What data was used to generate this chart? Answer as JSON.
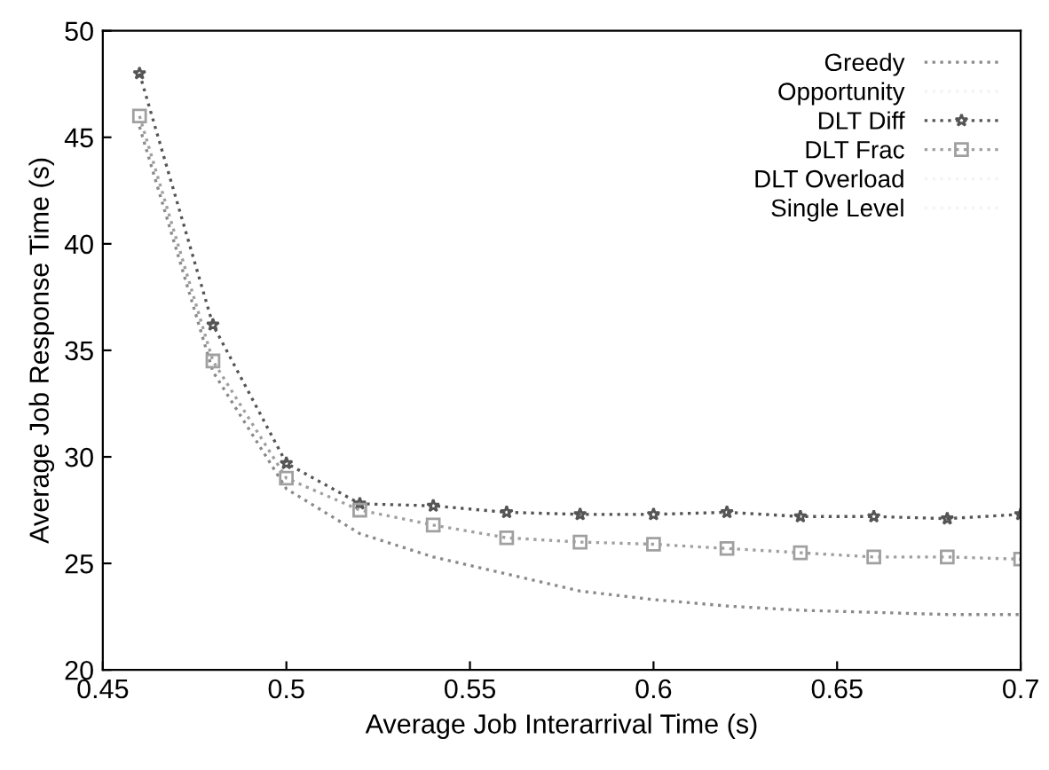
{
  "chart_data": {
    "type": "line",
    "xlabel": "Average Job Interarrival Time (s)",
    "ylabel": "Average Job Response Time (s)",
    "x": [
      0.46,
      0.48,
      0.5,
      0.52,
      0.54,
      0.56,
      0.58,
      0.6,
      0.62,
      0.64,
      0.66,
      0.68,
      0.7
    ],
    "series": [
      {
        "name": "Greedy",
        "color": "#8a8a8a",
        "marker": "none",
        "line_style": "dotted",
        "values": [
          45.5,
          34,
          28.5,
          26.4,
          25.3,
          24.5,
          23.7,
          23.3,
          23.0,
          22.8,
          22.7,
          22.6,
          22.6
        ]
      },
      {
        "name": "Opportunity",
        "color": "#f4f4f4",
        "marker": "none",
        "line_style": "dotted",
        "values": [
          null,
          null,
          null,
          null,
          null,
          null,
          null,
          null,
          null,
          null,
          null,
          null,
          null
        ]
      },
      {
        "name": "DLT Diff",
        "color": "#555555",
        "marker": "star",
        "line_style": "dotted",
        "values": [
          48,
          36.2,
          29.7,
          27.8,
          27.7,
          27.4,
          27.3,
          27.3,
          27.4,
          27.2,
          27.2,
          27.1,
          27.3
        ]
      },
      {
        "name": "DLT Frac",
        "color": "#a0a0a0",
        "marker": "square",
        "line_style": "dotted",
        "values": [
          46,
          34.5,
          29,
          27.5,
          26.8,
          26.2,
          26.0,
          25.9,
          25.7,
          25.5,
          25.3,
          25.3,
          25.2
        ]
      },
      {
        "name": "DLT Overload",
        "color": "#f4f4f4",
        "marker": "none",
        "line_style": "dotted",
        "values": [
          null,
          null,
          null,
          null,
          null,
          null,
          null,
          null,
          null,
          null,
          null,
          null,
          null
        ]
      },
      {
        "name": "Single Level",
        "color": "#f4f4f4",
        "marker": "none",
        "line_style": "dotted",
        "values": [
          null,
          null,
          null,
          null,
          null,
          null,
          null,
          null,
          null,
          null,
          null,
          null,
          null
        ]
      }
    ],
    "xlim": [
      0.45,
      0.7
    ],
    "xticks": [
      0.45,
      0.5,
      0.55,
      0.6,
      0.65,
      0.7
    ],
    "ylim": [
      20,
      50
    ],
    "yticks": [
      20,
      25,
      30,
      35,
      40,
      45,
      50
    ],
    "grid": false,
    "legend": "top right"
  }
}
